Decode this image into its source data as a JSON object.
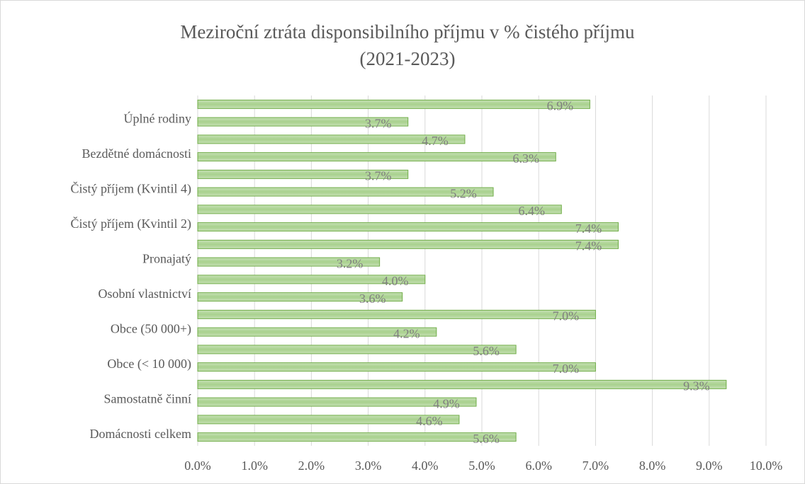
{
  "chart_data": {
    "type": "barh",
    "title": "Meziroční ztráta disponsibilního příjmu v % čistého příjmu",
    "subtitle": "(2021-2023)",
    "categories": [
      "Domácnosti celkem",
      null,
      "Samostatně činní",
      null,
      "Obce (< 10 000)",
      null,
      "Obce (50 000+)",
      null,
      "Osobní vlastnictví",
      null,
      "Pronajatý",
      null,
      "Čistý příjem (Kvintil 2)",
      null,
      "Čistý příjem (Kvintil 4)",
      null,
      "Bezdětné domácnosti",
      null,
      "Úplné rodiny",
      null
    ],
    "values": [
      5.6,
      4.6,
      4.9,
      9.3,
      7.0,
      5.6,
      4.2,
      7.0,
      3.6,
      4.0,
      3.2,
      7.4,
      7.4,
      6.4,
      5.2,
      3.7,
      6.3,
      4.7,
      3.7,
      6.9
    ],
    "value_labels": [
      "5.6%",
      "4.6%",
      "4.9%",
      "9.3%",
      "7.0%",
      "5.6%",
      "4.2%",
      "7.0%",
      "3.6%",
      "4.0%",
      "3.2%",
      "7.4%",
      "7.4%",
      "6.4%",
      "5.2%",
      "3.7%",
      "6.3%",
      "4.7%",
      "3.7%",
      "6.9%"
    ],
    "color": "#a9d18e",
    "edge_color": "#70ad47",
    "xlim": [
      0,
      10
    ],
    "xticks": [
      {
        "value": 0,
        "label": "0.0%"
      },
      {
        "value": 1,
        "label": "1.0%"
      },
      {
        "value": 2,
        "label": "2.0%"
      },
      {
        "value": 3,
        "label": "3.0%"
      },
      {
        "value": 4,
        "label": "4.0%"
      },
      {
        "value": 5,
        "label": "5.0%"
      },
      {
        "value": 6,
        "label": "6.0%"
      },
      {
        "value": 7,
        "label": "7.0%"
      },
      {
        "value": 8,
        "label": "8.0%"
      },
      {
        "value": 9,
        "label": "9.0%"
      },
      {
        "value": 10,
        "label": "10.0%"
      }
    ],
    "grid": true
  }
}
